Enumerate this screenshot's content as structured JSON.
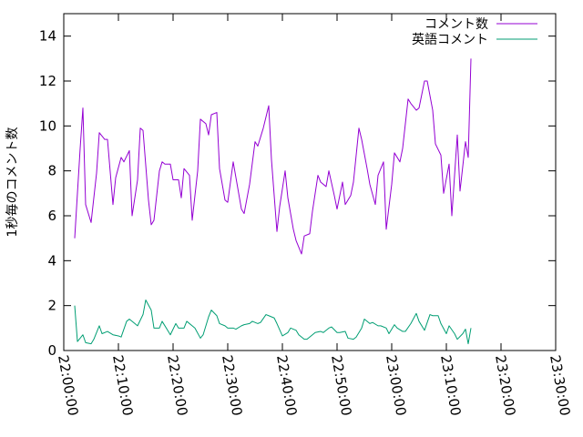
{
  "chart_data": {
    "type": "line",
    "title": "",
    "xlabel": "",
    "ylabel": "1秒毎のコメント数",
    "xlim": [
      "22:00:00",
      "23:30:00"
    ],
    "ylim": [
      0,
      15
    ],
    "grid": false,
    "legend_position": "top-right",
    "x_ticks": [
      "22:00:00",
      "22:10:00",
      "22:20:00",
      "22:30:00",
      "22:40:00",
      "22:50:00",
      "23:00:00",
      "23:10:00",
      "23:20:00",
      "23:30:00"
    ],
    "y_ticks": [
      0,
      2,
      4,
      6,
      8,
      10,
      12,
      14
    ],
    "series": [
      {
        "name": "コメント数",
        "color": "#9400d3",
        "points": [
          [
            "22:02:00",
            5.0
          ],
          [
            "22:03:00",
            9.0
          ],
          [
            "22:03:30",
            10.8
          ],
          [
            "22:04:00",
            6.5
          ],
          [
            "22:05:00",
            5.7
          ],
          [
            "22:06:00",
            7.9
          ],
          [
            "22:06:30",
            9.7
          ],
          [
            "22:07:30",
            9.4
          ],
          [
            "22:08:00",
            9.4
          ],
          [
            "22:09:00",
            6.5
          ],
          [
            "22:09:30",
            7.7
          ],
          [
            "22:10:30",
            8.6
          ],
          [
            "22:11:00",
            8.4
          ],
          [
            "22:12:00",
            8.9
          ],
          [
            "22:12:30",
            6.0
          ],
          [
            "22:13:30",
            7.6
          ],
          [
            "22:14:00",
            9.9
          ],
          [
            "22:14:30",
            9.8
          ],
          [
            "22:15:30",
            6.7
          ],
          [
            "22:16:00",
            5.6
          ],
          [
            "22:16:30",
            5.8
          ],
          [
            "22:17:30",
            8.0
          ],
          [
            "22:18:00",
            8.4
          ],
          [
            "22:18:30",
            8.3
          ],
          [
            "22:19:30",
            8.3
          ],
          [
            "22:20:00",
            7.6
          ],
          [
            "22:21:00",
            7.6
          ],
          [
            "22:21:30",
            6.8
          ],
          [
            "22:22:00",
            8.1
          ],
          [
            "22:23:00",
            7.8
          ],
          [
            "22:23:30",
            5.8
          ],
          [
            "22:24:30",
            8.0
          ],
          [
            "22:25:00",
            10.3
          ],
          [
            "22:26:00",
            10.1
          ],
          [
            "22:26:30",
            9.6
          ],
          [
            "22:27:00",
            10.5
          ],
          [
            "22:28:00",
            10.6
          ],
          [
            "22:28:30",
            8.1
          ],
          [
            "22:29:30",
            6.7
          ],
          [
            "22:30:00",
            6.6
          ],
          [
            "22:31:00",
            8.4
          ],
          [
            "22:31:30",
            7.7
          ],
          [
            "22:32:30",
            6.3
          ],
          [
            "22:33:00",
            6.1
          ],
          [
            "22:34:00",
            7.4
          ],
          [
            "22:35:00",
            9.3
          ],
          [
            "22:35:30",
            9.1
          ],
          [
            "22:36:30",
            9.9
          ],
          [
            "22:37:30",
            10.9
          ],
          [
            "22:38:00",
            8.5
          ],
          [
            "22:39:00",
            5.3
          ],
          [
            "22:39:30",
            6.4
          ],
          [
            "22:40:30",
            8.0
          ],
          [
            "22:41:00",
            6.8
          ],
          [
            "22:42:00",
            5.4
          ],
          [
            "22:42:30",
            4.9
          ],
          [
            "22:43:30",
            4.3
          ],
          [
            "22:44:00",
            5.1
          ],
          [
            "22:45:00",
            5.2
          ],
          [
            "22:45:30",
            6.2
          ],
          [
            "22:46:30",
            7.8
          ],
          [
            "22:47:00",
            7.5
          ],
          [
            "22:48:00",
            7.3
          ],
          [
            "22:48:30",
            8.0
          ],
          [
            "22:49:30",
            6.9
          ],
          [
            "22:50:00",
            6.3
          ],
          [
            "22:51:00",
            7.5
          ],
          [
            "22:51:30",
            6.5
          ],
          [
            "22:52:30",
            6.9
          ],
          [
            "22:53:00",
            7.5
          ],
          [
            "22:54:00",
            9.9
          ],
          [
            "22:54:30",
            9.4
          ],
          [
            "22:55:30",
            8.1
          ],
          [
            "22:56:00",
            7.4
          ],
          [
            "22:57:00",
            6.5
          ],
          [
            "22:57:30",
            7.8
          ],
          [
            "22:58:30",
            8.4
          ],
          [
            "22:59:00",
            5.4
          ],
          [
            "23:00:00",
            7.4
          ],
          [
            "23:00:30",
            8.8
          ],
          [
            "23:01:30",
            8.4
          ],
          [
            "23:02:00",
            9.0
          ],
          [
            "23:03:00",
            11.2
          ],
          [
            "23:03:30",
            11.0
          ],
          [
            "23:04:30",
            10.7
          ],
          [
            "23:05:00",
            10.8
          ],
          [
            "23:06:00",
            12.0
          ],
          [
            "23:06:30",
            12.0
          ],
          [
            "23:07:30",
            10.7
          ],
          [
            "23:08:00",
            9.2
          ],
          [
            "23:09:00",
            8.7
          ],
          [
            "23:09:30",
            7.0
          ],
          [
            "23:10:30",
            8.3
          ],
          [
            "23:11:00",
            6.0
          ],
          [
            "23:12:00",
            9.6
          ],
          [
            "23:12:30",
            7.1
          ],
          [
            "23:13:30",
            9.3
          ],
          [
            "23:14:00",
            8.6
          ],
          [
            "23:14:30",
            13.0
          ]
        ]
      },
      {
        "name": "英語コメント",
        "color": "#009e73",
        "points": [
          [
            "22:02:00",
            2.0
          ],
          [
            "22:02:30",
            0.4
          ],
          [
            "22:03:30",
            0.7
          ],
          [
            "22:04:00",
            0.35
          ],
          [
            "22:05:00",
            0.3
          ],
          [
            "22:05:30",
            0.5
          ],
          [
            "22:06:30",
            1.1
          ],
          [
            "22:07:00",
            0.75
          ],
          [
            "22:08:00",
            0.85
          ],
          [
            "22:09:00",
            0.7
          ],
          [
            "22:10:00",
            0.65
          ],
          [
            "22:10:30",
            0.6
          ],
          [
            "22:11:30",
            1.3
          ],
          [
            "22:12:00",
            1.4
          ],
          [
            "22:13:00",
            1.2
          ],
          [
            "22:13:30",
            1.1
          ],
          [
            "22:14:30",
            1.6
          ],
          [
            "22:15:00",
            2.25
          ],
          [
            "22:16:00",
            1.8
          ],
          [
            "22:16:30",
            1.0
          ],
          [
            "22:17:30",
            1.0
          ],
          [
            "22:18:00",
            1.3
          ],
          [
            "22:19:00",
            0.9
          ],
          [
            "22:19:30",
            0.7
          ],
          [
            "22:20:30",
            1.2
          ],
          [
            "22:21:00",
            1.0
          ],
          [
            "22:22:00",
            1.0
          ],
          [
            "22:22:30",
            1.3
          ],
          [
            "22:23:30",
            1.1
          ],
          [
            "22:24:00",
            1.0
          ],
          [
            "22:25:00",
            0.55
          ],
          [
            "22:25:30",
            0.7
          ],
          [
            "22:26:30",
            1.5
          ],
          [
            "22:27:00",
            1.8
          ],
          [
            "22:28:00",
            1.55
          ],
          [
            "22:28:30",
            1.2
          ],
          [
            "22:29:30",
            1.1
          ],
          [
            "22:30:00",
            1.0
          ],
          [
            "22:31:00",
            1.0
          ],
          [
            "22:31:30",
            0.95
          ],
          [
            "22:32:30",
            1.1
          ],
          [
            "22:33:00",
            1.15
          ],
          [
            "22:34:00",
            1.2
          ],
          [
            "22:34:30",
            1.3
          ],
          [
            "22:35:30",
            1.2
          ],
          [
            "22:36:00",
            1.25
          ],
          [
            "22:37:00",
            1.6
          ],
          [
            "22:37:30",
            1.55
          ],
          [
            "22:38:30",
            1.45
          ],
          [
            "22:39:00",
            1.2
          ],
          [
            "22:40:00",
            0.65
          ],
          [
            "22:41:00",
            0.8
          ],
          [
            "22:41:30",
            1.0
          ],
          [
            "22:42:30",
            0.9
          ],
          [
            "22:43:00",
            0.7
          ],
          [
            "22:44:00",
            0.5
          ],
          [
            "22:44:30",
            0.5
          ],
          [
            "22:45:30",
            0.7
          ],
          [
            "22:46:00",
            0.8
          ],
          [
            "22:47:00",
            0.85
          ],
          [
            "22:47:30",
            0.8
          ],
          [
            "22:48:30",
            1.0
          ],
          [
            "22:49:00",
            1.05
          ],
          [
            "22:50:00",
            0.8
          ],
          [
            "22:50:30",
            0.8
          ],
          [
            "22:51:30",
            0.85
          ],
          [
            "22:52:00",
            0.55
          ],
          [
            "22:53:00",
            0.5
          ],
          [
            "22:53:30",
            0.6
          ],
          [
            "22:54:30",
            1.0
          ],
          [
            "22:55:00",
            1.4
          ],
          [
            "22:56:00",
            1.2
          ],
          [
            "22:56:30",
            1.25
          ],
          [
            "22:57:30",
            1.1
          ],
          [
            "22:58:00",
            1.1
          ],
          [
            "22:59:00",
            1.0
          ],
          [
            "22:59:30",
            0.75
          ],
          [
            "23:00:30",
            1.15
          ],
          [
            "23:01:00",
            1.0
          ],
          [
            "23:02:00",
            0.85
          ],
          [
            "23:02:30",
            0.85
          ],
          [
            "23:03:30",
            1.2
          ],
          [
            "23:04:30",
            1.65
          ],
          [
            "23:05:00",
            1.3
          ],
          [
            "23:06:00",
            0.9
          ],
          [
            "23:07:00",
            1.6
          ],
          [
            "23:07:30",
            1.55
          ],
          [
            "23:08:30",
            1.55
          ],
          [
            "23:09:00",
            1.2
          ],
          [
            "23:10:00",
            0.75
          ],
          [
            "23:10:30",
            1.1
          ],
          [
            "23:11:30",
            0.75
          ],
          [
            "23:12:00",
            0.5
          ],
          [
            "23:13:00",
            0.75
          ],
          [
            "23:13:30",
            0.95
          ],
          [
            "23:14:00",
            0.3
          ],
          [
            "23:14:30",
            1.0
          ]
        ]
      }
    ]
  }
}
